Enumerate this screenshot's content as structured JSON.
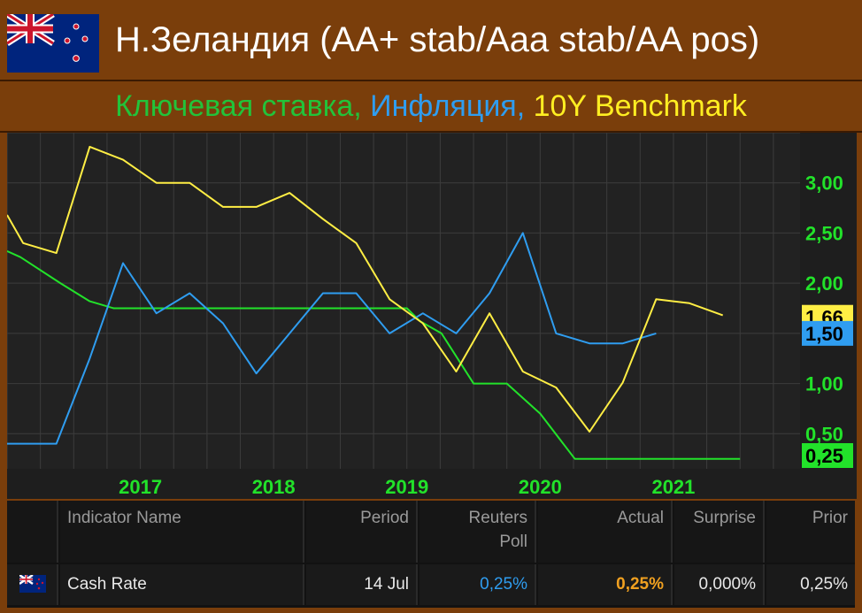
{
  "header": {
    "title": "Н.Зеландия (AA+ stab/Aaa stab/AA pos)",
    "flag_icon": "new-zealand-flag-icon"
  },
  "subtitle": {
    "part1": "Ключевая ставка,",
    "part2": " Инфляция,",
    "part3": " 10Y Benchmark"
  },
  "colors": {
    "policy_rate": "#22e22a",
    "inflation": "#2f9df0",
    "benchmark": "#ffee44",
    "plot_bg": "#222222",
    "grid": "#3c3c3c",
    "tick_label": "#22e22a"
  },
  "chart_data": {
    "type": "line",
    "title": "",
    "xlabel": "",
    "ylabel": "",
    "x_range": [
      2016.0,
      2021.95
    ],
    "ylim": [
      0.15,
      3.5
    ],
    "grid": true,
    "x_ticks": [
      {
        "label": "2017",
        "x": 2017.0
      },
      {
        "label": "2018",
        "x": 2018.0
      },
      {
        "label": "2019",
        "x": 2019.0
      },
      {
        "label": "2020",
        "x": 2020.0
      },
      {
        "label": "2021",
        "x": 2021.0
      }
    ],
    "y_ticks": [
      {
        "label": "0,50",
        "y": 0.5
      },
      {
        "label": "1,00",
        "y": 1.0
      },
      {
        "label": "2,00",
        "y": 2.0
      },
      {
        "label": "2,50",
        "y": 2.5
      },
      {
        "label": "3,00",
        "y": 3.0
      }
    ],
    "last_value_labels": [
      {
        "label": "1,66",
        "y": 1.66,
        "series": "benchmark"
      },
      {
        "label": "1,50",
        "y": 1.5,
        "series": "inflation"
      },
      {
        "label": "0,25",
        "y": 0.25,
        "series": "policy_rate"
      }
    ],
    "series": [
      {
        "key": "policy_rate",
        "points": [
          [
            2016.0,
            2.32
          ],
          [
            2016.1,
            2.26
          ],
          [
            2016.4,
            2.0
          ],
          [
            2016.62,
            1.82
          ],
          [
            2016.8,
            1.75
          ],
          [
            2017.5,
            1.75
          ],
          [
            2018.5,
            1.75
          ],
          [
            2019.0,
            1.75
          ],
          [
            2019.1,
            1.62
          ],
          [
            2019.26,
            1.5
          ],
          [
            2019.5,
            1.0
          ],
          [
            2019.75,
            1.0
          ],
          [
            2020.0,
            0.7
          ],
          [
            2020.26,
            0.25
          ],
          [
            2021.0,
            0.25
          ],
          [
            2021.5,
            0.25
          ]
        ]
      },
      {
        "key": "inflation",
        "points": [
          [
            2016.0,
            0.4
          ],
          [
            2016.37,
            0.4
          ],
          [
            2016.62,
            1.25
          ],
          [
            2016.87,
            2.2
          ],
          [
            2017.12,
            1.7
          ],
          [
            2017.37,
            1.9
          ],
          [
            2017.62,
            1.6
          ],
          [
            2017.87,
            1.1
          ],
          [
            2018.12,
            1.5
          ],
          [
            2018.37,
            1.9
          ],
          [
            2018.62,
            1.9
          ],
          [
            2018.87,
            1.5
          ],
          [
            2019.12,
            1.7
          ],
          [
            2019.37,
            1.5
          ],
          [
            2019.62,
            1.9
          ],
          [
            2019.87,
            2.5
          ],
          [
            2020.12,
            1.5
          ],
          [
            2020.37,
            1.4
          ],
          [
            2020.62,
            1.4
          ],
          [
            2020.87,
            1.5
          ]
        ]
      },
      {
        "key": "benchmark",
        "points": [
          [
            2016.0,
            2.68
          ],
          [
            2016.12,
            2.4
          ],
          [
            2016.37,
            2.3
          ],
          [
            2016.62,
            3.36
          ],
          [
            2016.87,
            3.23
          ],
          [
            2017.12,
            3.0
          ],
          [
            2017.37,
            3.0
          ],
          [
            2017.62,
            2.76
          ],
          [
            2017.87,
            2.76
          ],
          [
            2018.12,
            2.9
          ],
          [
            2018.37,
            2.64
          ],
          [
            2018.62,
            2.4
          ],
          [
            2018.87,
            1.84
          ],
          [
            2019.12,
            1.6
          ],
          [
            2019.37,
            1.12
          ],
          [
            2019.62,
            1.7
          ],
          [
            2019.87,
            1.12
          ],
          [
            2020.12,
            0.96
          ],
          [
            2020.37,
            0.52
          ],
          [
            2020.62,
            1.01
          ],
          [
            2020.87,
            1.84
          ],
          [
            2021.12,
            1.8
          ],
          [
            2021.37,
            1.68
          ]
        ]
      }
    ]
  },
  "table": {
    "headers": {
      "indicator": "Indicator Name",
      "period": "Period",
      "poll_line1": "Reuters",
      "poll_line2": "Poll",
      "actual": "Actual",
      "surprise": "Surprise",
      "prior": "Prior"
    },
    "row": {
      "flag_icon": "new-zealand-flag-icon",
      "indicator": "Cash Rate",
      "period": "14 Jul",
      "poll": "0,25%",
      "actual": "0,25%",
      "surprise": "0,000%",
      "prior": "0,25%",
      "poll_color": "#2f9df0",
      "actual_color": "#f0a020"
    }
  }
}
